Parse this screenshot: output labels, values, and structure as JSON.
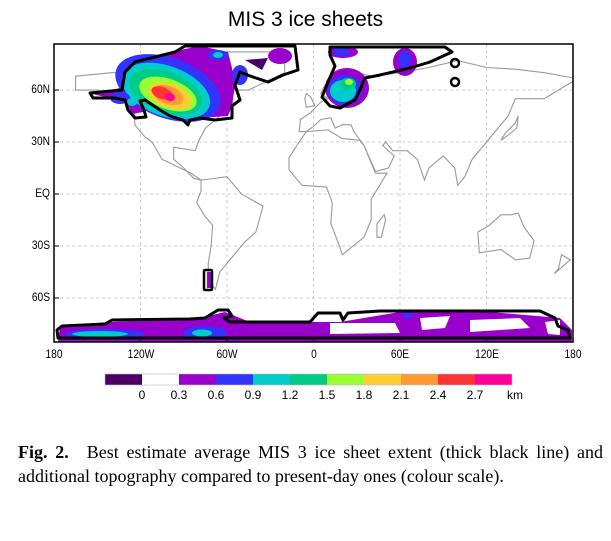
{
  "title": "MIS 3 ice sheets",
  "map": {
    "lat_labels": [
      "60N",
      "30N",
      "EQ",
      "30S",
      "60S"
    ],
    "lat_values": [
      60,
      30,
      0,
      -30,
      -60
    ],
    "lon_labels": [
      "180",
      "120W",
      "60W",
      "0",
      "60E",
      "120E",
      "180"
    ],
    "lon_values": [
      -180,
      -120,
      -60,
      0,
      60,
      120,
      180
    ],
    "grid": "dashed",
    "outline_color": "#000000",
    "coastline_color": "#999999"
  },
  "colorbar": {
    "labels": [
      "0",
      "0.3",
      "0.6",
      "0.9",
      "1.2",
      "1.5",
      "1.8",
      "2.1",
      "2.4",
      "2.7"
    ],
    "unit": "km",
    "colors": [
      "#4b0066",
      "#ffffff",
      "#9900cc",
      "#3333ff",
      "#00cccc",
      "#00cc88",
      "#99ff33",
      "#ffcc33",
      "#ff9933",
      "#ff3333",
      "#ff0099"
    ]
  },
  "caption": {
    "label": "Fig. 2.",
    "text": "Best estimate average MIS 3 ice sheet extent (thick black line) and additional topography compared to present-day ones (colour scale)."
  }
}
